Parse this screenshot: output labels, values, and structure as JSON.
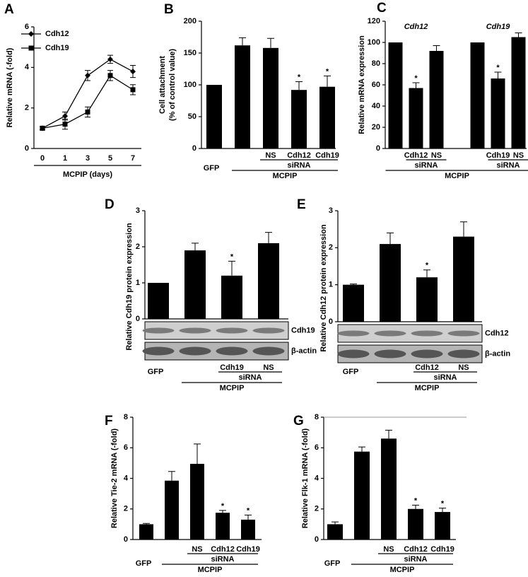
{
  "chart_data": [
    {
      "panel": "A",
      "type": "line",
      "ylabel": "Relative mRNA (-fold)",
      "xlabel": "MCPIP (days)",
      "categories": [
        "0",
        "1",
        "3",
        "5",
        "7"
      ],
      "series": [
        {
          "name": "Cdh12",
          "marker": "diamond",
          "color": "#000000",
          "values": [
            1,
            1.6,
            3.6,
            4.4,
            3.8
          ],
          "errors": [
            0.08,
            0.2,
            0.25,
            0.2,
            0.3
          ]
        },
        {
          "name": "Cdh19",
          "marker": "square",
          "color": "#000000",
          "values": [
            1,
            1.2,
            1.8,
            3.6,
            2.9
          ],
          "errors": [
            0.08,
            0.25,
            0.25,
            0.25,
            0.25
          ]
        }
      ],
      "ylim": [
        0,
        6
      ],
      "yticks": [
        0,
        2,
        4,
        6
      ]
    },
    {
      "panel": "B",
      "type": "bar",
      "ylabel": [
        "Cell attachment",
        "(% of control value)"
      ],
      "color": "#000000",
      "values": [
        100,
        162,
        158,
        92,
        97
      ],
      "errors": [
        0,
        12,
        15,
        13,
        17
      ],
      "significant": [
        false,
        false,
        false,
        true,
        true
      ],
      "marker": "*",
      "categories": [
        null,
        null,
        "NS",
        "Cdh12",
        "Cdh19"
      ],
      "control_label": "GFP",
      "brackets": [
        {
          "label": "siRNA",
          "from": 2,
          "to": 4,
          "level": 0
        },
        {
          "label": "MCPIP",
          "from": 1,
          "to": 4,
          "level": 1
        }
      ],
      "ylim": [
        0,
        200
      ],
      "yticks": [
        0,
        50,
        100,
        150,
        200
      ]
    },
    {
      "panel": "C",
      "type": "bar",
      "ylabel": "Relative mRNA expression",
      "color": "#000000",
      "values": [
        100,
        57,
        92,
        null,
        100,
        66,
        105
      ],
      "errors": [
        0,
        5,
        5,
        null,
        0,
        6,
        4
      ],
      "significant": [
        false,
        true,
        false,
        null,
        false,
        true,
        false
      ],
      "marker": "*",
      "categories": [
        null,
        "Cdh12",
        "NS",
        null,
        null,
        "Cdh19",
        "NS"
      ],
      "group_labels": [
        {
          "label": "Cdh12",
          "from": 0,
          "to": 2
        },
        {
          "label": "Cdh19",
          "from": 4,
          "to": 6
        }
      ],
      "brackets": [
        {
          "label": "siRNA",
          "from": 1,
          "to": 2,
          "level": 0
        },
        {
          "label": "siRNA",
          "from": 5,
          "to": 6,
          "level": 0
        },
        {
          "label": "MCPIP",
          "from": 0,
          "to": 6,
          "level": 1
        }
      ],
      "ylim": [
        0,
        120
      ],
      "yticks": [
        0,
        20,
        40,
        60,
        80,
        100,
        120
      ]
    },
    {
      "panel": "D",
      "type": "bar",
      "ylabel": "Relative Cdh19 protein expression",
      "color": "#000000",
      "values": [
        1,
        1.9,
        1.2,
        2.1
      ],
      "errors": [
        0,
        0.2,
        0.4,
        0.3
      ],
      "significant": [
        false,
        false,
        true,
        false
      ],
      "marker": "*",
      "categories": [
        null,
        null,
        "Cdh19",
        "NS"
      ],
      "control_label": "GFP",
      "brackets": [
        {
          "label": "siRNA",
          "from": 2,
          "to": 3,
          "level": 0
        },
        {
          "label": "MCPIP",
          "from": 1,
          "to": 3,
          "level": 1
        }
      ],
      "blots": [
        "Cdh19",
        "β-actin"
      ],
      "ylim": [
        0,
        3
      ],
      "yticks": [
        0,
        1,
        2,
        3
      ]
    },
    {
      "panel": "E",
      "type": "bar",
      "ylabel": "Relative Cdh12 protein expression",
      "color": "#000000",
      "values": [
        1,
        2.1,
        1.2,
        2.3
      ],
      "errors": [
        0.02,
        0.3,
        0.2,
        0.4
      ],
      "significant": [
        false,
        false,
        true,
        false
      ],
      "marker": "*",
      "categories": [
        null,
        null,
        "Cdh12",
        "NS"
      ],
      "control_label": "GFP",
      "brackets": [
        {
          "label": "siRNA",
          "from": 2,
          "to": 3,
          "level": 0
        },
        {
          "label": "MCPIP",
          "from": 1,
          "to": 3,
          "level": 1
        }
      ],
      "blots": [
        "Cdh12",
        "β-actin"
      ],
      "ylim": [
        0,
        3
      ],
      "yticks": [
        0,
        1,
        2,
        3
      ]
    },
    {
      "panel": "F",
      "type": "bar",
      "ylabel": "Relative Tie-2 mRNA (-fold)",
      "color": "#000000",
      "values": [
        1,
        3.85,
        4.95,
        1.75,
        1.3
      ],
      "errors": [
        0.05,
        0.6,
        1.3,
        0.15,
        0.3
      ],
      "significant": [
        false,
        false,
        false,
        true,
        true
      ],
      "marker": "*",
      "categories": [
        null,
        null,
        "NS",
        "Cdh12",
        "Cdh19"
      ],
      "control_label": "GFP",
      "brackets": [
        {
          "label": "siRNA",
          "from": 2,
          "to": 4,
          "level": 0
        },
        {
          "label": "MCPIP",
          "from": 1,
          "to": 4,
          "level": 1
        }
      ],
      "ylim": [
        0,
        8
      ],
      "yticks": [
        0,
        2,
        4,
        6,
        8
      ]
    },
    {
      "panel": "G",
      "type": "bar",
      "ylabel": "Relative Flk-1 mRNA (-fold)",
      "color": "#000000",
      "values": [
        1,
        5.75,
        6.6,
        2,
        1.8
      ],
      "errors": [
        0.15,
        0.3,
        0.55,
        0.25,
        0.25
      ],
      "significant": [
        false,
        false,
        false,
        true,
        true
      ],
      "marker": "*",
      "categories": [
        null,
        null,
        "NS",
        "Cdh12",
        "Cdh19"
      ],
      "control_label": "GFP",
      "brackets": [
        {
          "label": "siRNA",
          "from": 2,
          "to": 4,
          "level": 0
        },
        {
          "label": "MCPIP",
          "from": 1,
          "to": 4,
          "level": 1
        }
      ],
      "ylim": [
        0,
        8
      ],
      "yticks": [
        0,
        2,
        4,
        6,
        8
      ]
    }
  ]
}
